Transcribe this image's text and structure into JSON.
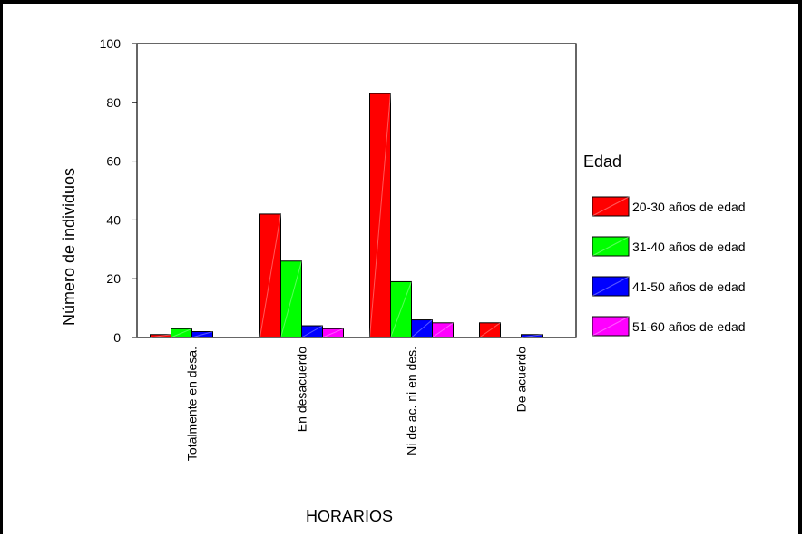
{
  "chart_data": {
    "type": "bar",
    "title": "",
    "xlabel": "HORARIOS",
    "ylabel": "Número de individuos",
    "ylim": [
      0,
      100
    ],
    "yticks": [
      0,
      20,
      40,
      60,
      80,
      100
    ],
    "grid": false,
    "legend_title": "Edad",
    "legend_position": "right",
    "categories": [
      "Totalmente en desa.",
      "En desacuerdo",
      "Ni de ac. ni en des.",
      "De acuerdo"
    ],
    "series": [
      {
        "name": "20-30 años de edad",
        "color": "#ff0000",
        "values": [
          1,
          42,
          83,
          5
        ]
      },
      {
        "name": "31-40 años de edad",
        "color": "#00ff00",
        "values": [
          3,
          26,
          19,
          0
        ]
      },
      {
        "name": "41-50 años de edad",
        "color": "#0000ff",
        "values": [
          2,
          4,
          6,
          1
        ]
      },
      {
        "name": "51-60 años de edad",
        "color": "#ff00ff",
        "values": [
          0,
          3,
          5,
          0
        ]
      }
    ]
  }
}
